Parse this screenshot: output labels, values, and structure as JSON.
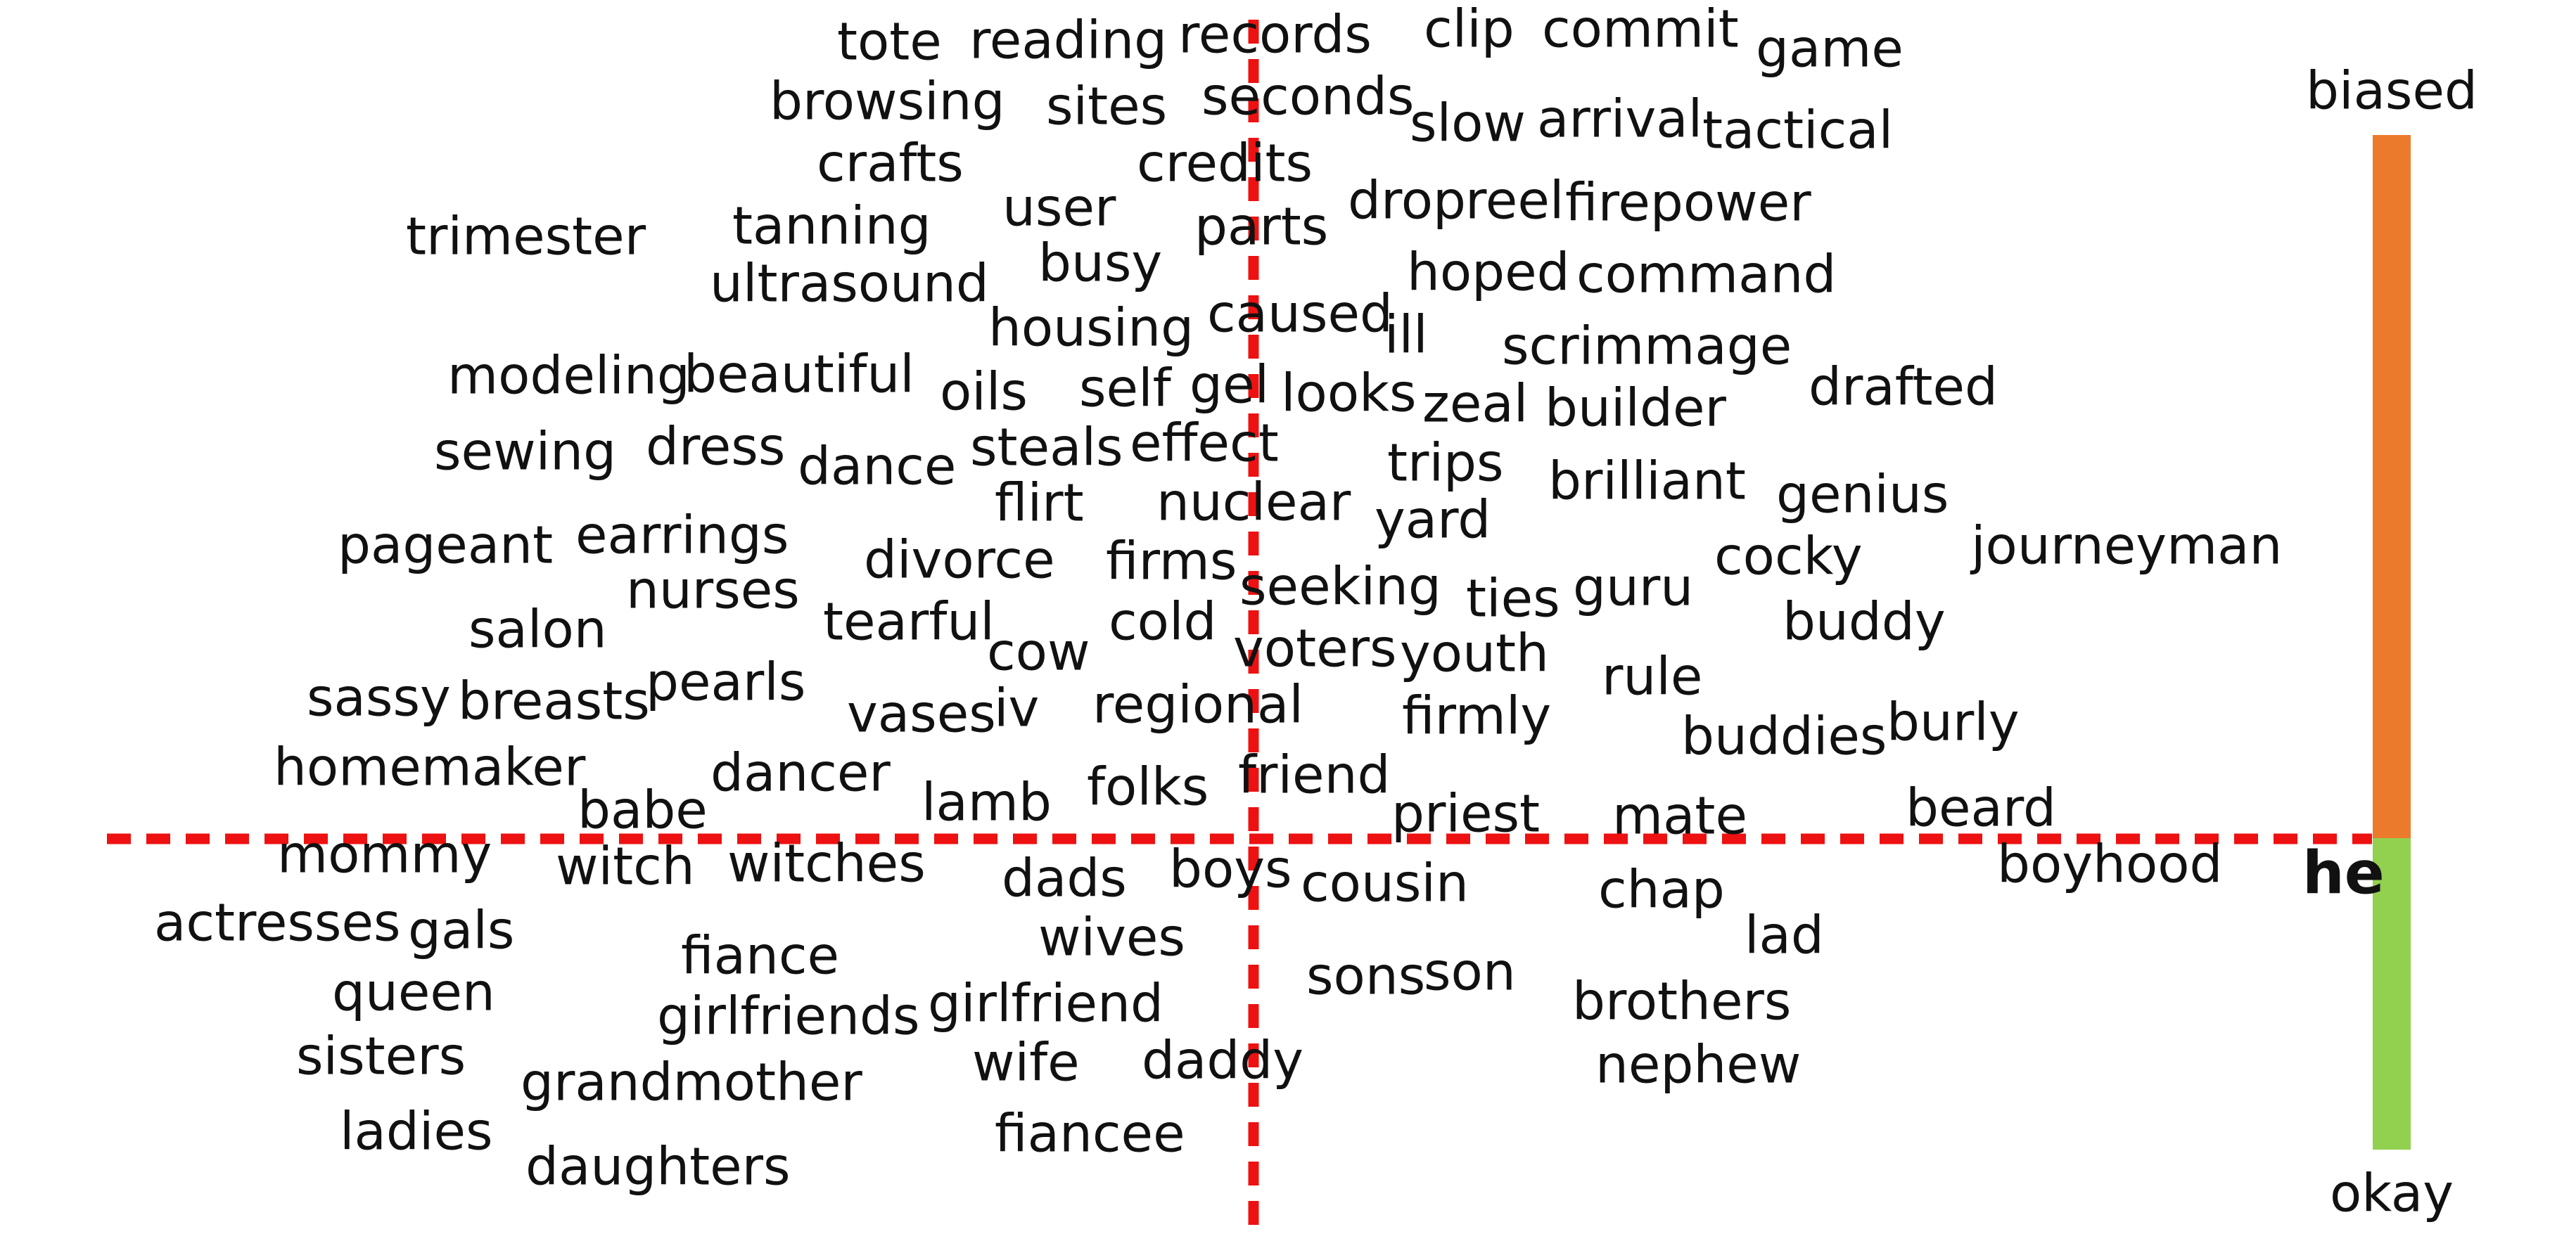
{
  "colors": {
    "axis_line": "#ee1111",
    "word_text": "#111111",
    "scale_biased": "#ec7a2c",
    "scale_okay": "#92d050",
    "background": "#ffffff"
  },
  "line_style": "dashed",
  "axis_label": "he",
  "scale": {
    "top_label": "biased",
    "bottom_label": "okay"
  },
  "words": [
    "tote",
    "reading",
    "records",
    "clip",
    "commit",
    "game",
    "browsing",
    "sites",
    "seconds",
    "slow",
    "arrival",
    "tactical",
    "crafts",
    "credits",
    "trimester",
    "tanning",
    "user",
    "parts",
    "drop",
    "reel",
    "firepower",
    "ultrasound",
    "busy",
    "hoped",
    "command",
    "housing",
    "caused",
    "ill",
    "scrimmage",
    "modeling",
    "beautiful",
    "oils",
    "self",
    "gel",
    "looks",
    "zeal",
    "builder",
    "drafted",
    "sewing",
    "dress",
    "dance",
    "steals",
    "effect",
    "trips",
    "brilliant",
    "genius",
    "flirt",
    "nuclear",
    "yard",
    "pageant",
    "earrings",
    "divorce",
    "firms",
    "cocky",
    "journeyman",
    "nurses",
    "seeking",
    "ties",
    "guru",
    "salon",
    "tearful",
    "cold",
    "buddy",
    "cow",
    "voters",
    "youth",
    "rule",
    "sassy",
    "breasts",
    "pearls",
    "vases",
    "iv",
    "regional",
    "firmly",
    "buddies",
    "burly",
    "homemaker",
    "dancer",
    "friend",
    "folks",
    "lamb",
    "babe",
    "priest",
    "mate",
    "beard",
    "mommy",
    "witch",
    "witches",
    "boyhood",
    "dads",
    "boys",
    "cousin",
    "chap",
    "actresses",
    "gals",
    "lad",
    "fiance",
    "wives",
    "queen",
    "sons",
    "son",
    "girlfriends",
    "girlfriend",
    "brothers",
    "sisters",
    "wife",
    "daddy",
    "nephew",
    "grandmother",
    "ladies",
    "fiancee",
    "daughters"
  ]
}
